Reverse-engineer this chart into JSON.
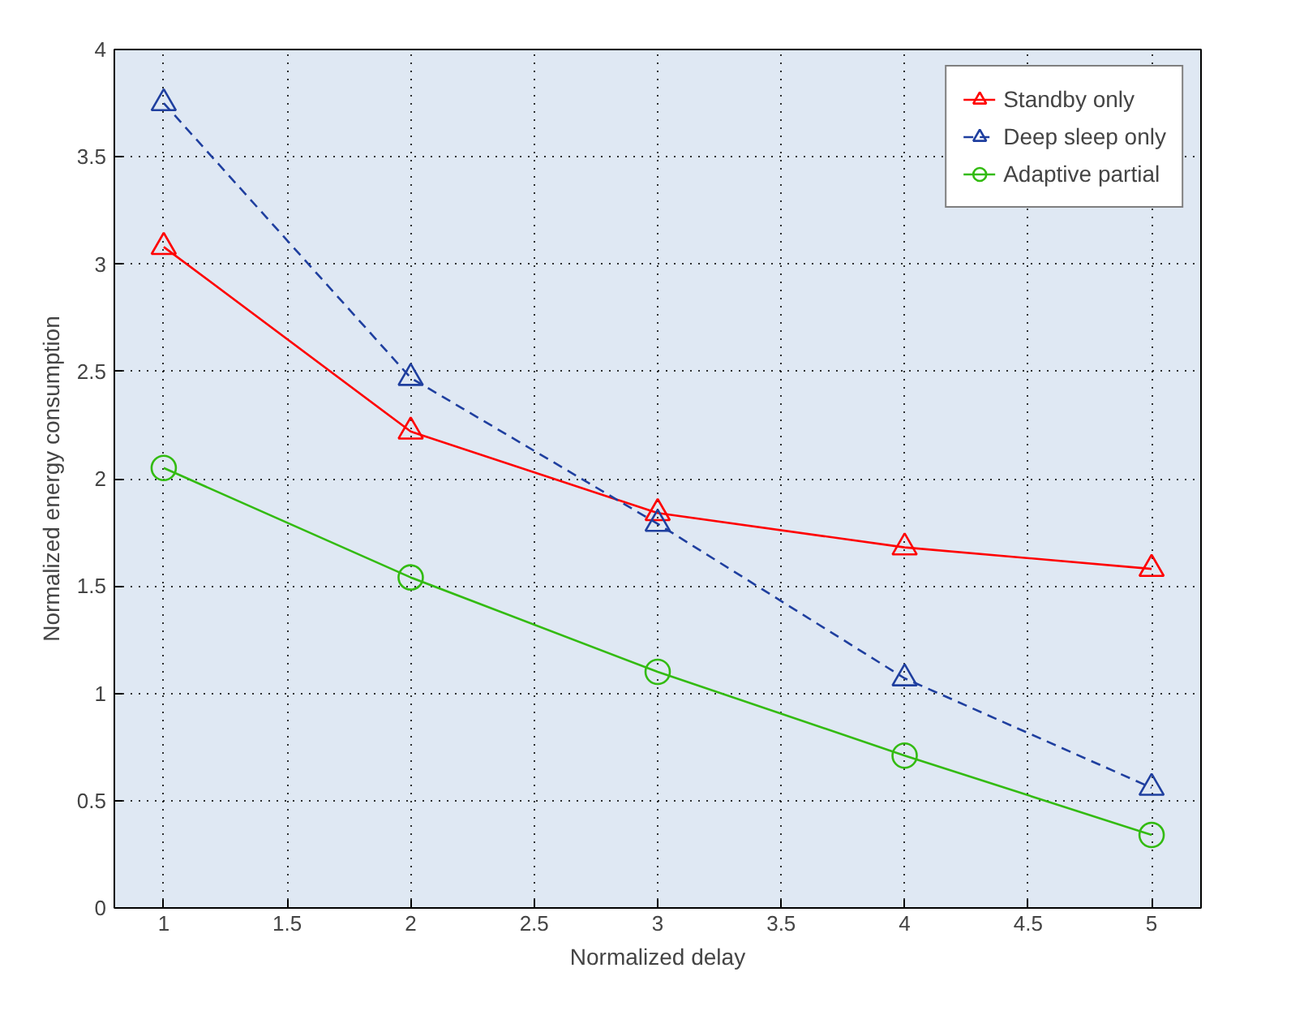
{
  "chart_data": {
    "type": "line",
    "xlabel": "Normalized delay",
    "ylabel": "Normalized energy consumption",
    "x": [
      1,
      2,
      3,
      4,
      5
    ],
    "series": [
      {
        "name": "Standby only",
        "color": "#ff0000",
        "values": [
          3.08,
          2.22,
          1.84,
          1.68,
          1.58
        ],
        "marker": "triangle",
        "line_style": "solid"
      },
      {
        "name": "Deep sleep only",
        "color": "#1f3f9f",
        "values": [
          3.75,
          2.47,
          1.79,
          1.07,
          0.56
        ],
        "marker": "triangle",
        "line_style": "dashed"
      },
      {
        "name": "Adaptive partial",
        "color": "#33bb11",
        "values": [
          2.05,
          1.54,
          1.1,
          0.71,
          0.34
        ],
        "marker": "circle",
        "line_style": "solid"
      }
    ],
    "xlim": [
      0.8,
      5.2
    ],
    "xticks": [
      1,
      1.5,
      2,
      2.5,
      3,
      3.5,
      4,
      4.5,
      5
    ],
    "ylim": [
      0,
      4
    ],
    "yticks": [
      0,
      0.5,
      1,
      1.5,
      2,
      2.5,
      3,
      3.5,
      4
    ],
    "grid": true,
    "legend": "top right"
  }
}
